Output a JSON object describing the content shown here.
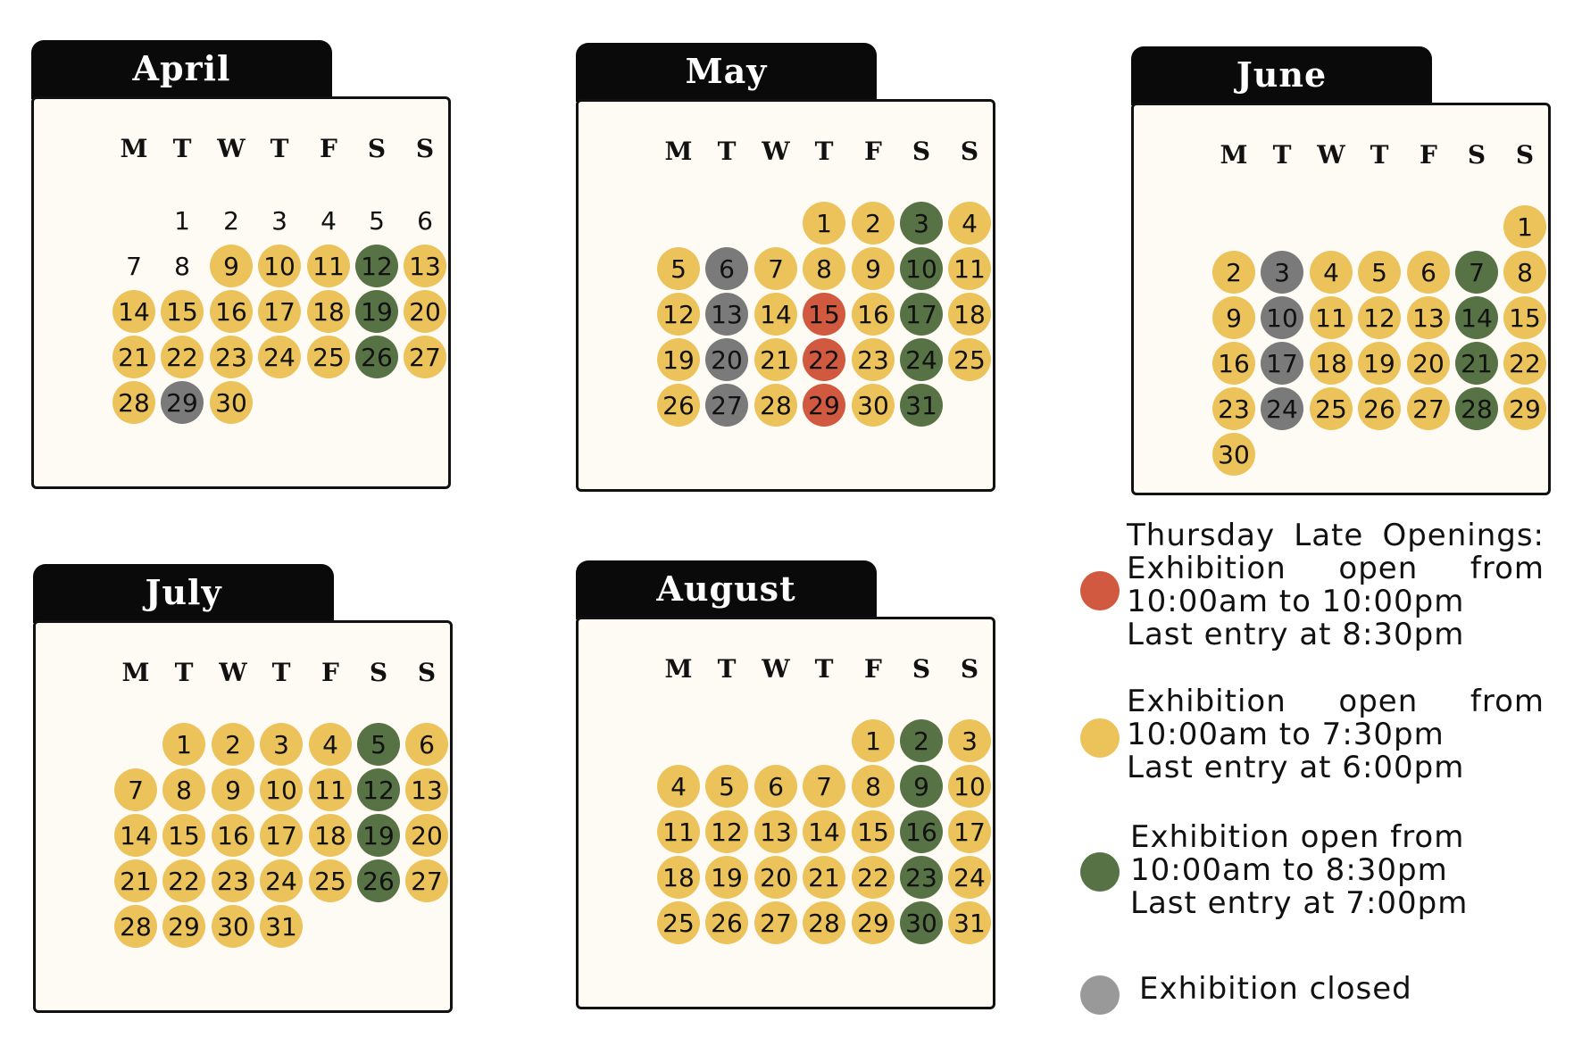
{
  "weekdays": [
    "M",
    "T",
    "W",
    "T",
    "F",
    "S",
    "S"
  ],
  "colors": {
    "open": "#ecc35a",
    "weekend_open": "#577244",
    "late": "#d0593f",
    "closed": "#7a7a7a"
  },
  "months": [
    {
      "name": "April",
      "start_offset": 1,
      "days": [
        [
          "1",
          "none"
        ],
        [
          "2",
          "none"
        ],
        [
          "3",
          "none"
        ],
        [
          "4",
          "none"
        ],
        [
          "5",
          "none"
        ],
        [
          "6",
          "none"
        ],
        [
          "7",
          "none"
        ],
        [
          "8",
          "none"
        ],
        [
          "9",
          "open"
        ],
        [
          "10",
          "open"
        ],
        [
          "11",
          "open"
        ],
        [
          "12",
          "weekend_open"
        ],
        [
          "13",
          "open"
        ],
        [
          "14",
          "open"
        ],
        [
          "15",
          "open"
        ],
        [
          "16",
          "open"
        ],
        [
          "17",
          "open"
        ],
        [
          "18",
          "open"
        ],
        [
          "19",
          "weekend_open"
        ],
        [
          "20",
          "open"
        ],
        [
          "21",
          "open"
        ],
        [
          "22",
          "open"
        ],
        [
          "23",
          "open"
        ],
        [
          "24",
          "open"
        ],
        [
          "25",
          "open"
        ],
        [
          "26",
          "weekend_open"
        ],
        [
          "27",
          "open"
        ],
        [
          "28",
          "open"
        ],
        [
          "29",
          "closed"
        ],
        [
          "30",
          "open"
        ]
      ]
    },
    {
      "name": "May",
      "start_offset": 3,
      "days": [
        [
          "1",
          "open"
        ],
        [
          "2",
          "open"
        ],
        [
          "3",
          "weekend_open"
        ],
        [
          "4",
          "open"
        ],
        [
          "5",
          "open"
        ],
        [
          "6",
          "closed"
        ],
        [
          "7",
          "open"
        ],
        [
          "8",
          "open"
        ],
        [
          "9",
          "open"
        ],
        [
          "10",
          "weekend_open"
        ],
        [
          "11",
          "open"
        ],
        [
          "12",
          "open"
        ],
        [
          "13",
          "closed"
        ],
        [
          "14",
          "open"
        ],
        [
          "15",
          "late"
        ],
        [
          "16",
          "open"
        ],
        [
          "17",
          "weekend_open"
        ],
        [
          "18",
          "open"
        ],
        [
          "19",
          "open"
        ],
        [
          "20",
          "closed"
        ],
        [
          "21",
          "open"
        ],
        [
          "22",
          "late"
        ],
        [
          "23",
          "open"
        ],
        [
          "24",
          "weekend_open"
        ],
        [
          "25",
          "open"
        ],
        [
          "26",
          "open"
        ],
        [
          "27",
          "closed"
        ],
        [
          "28",
          "open"
        ],
        [
          "29",
          "late"
        ],
        [
          "30",
          "open"
        ],
        [
          "31",
          "weekend_open"
        ]
      ]
    },
    {
      "name": "June",
      "start_offset": 6,
      "days": [
        [
          "1",
          "open"
        ],
        [
          "2",
          "open"
        ],
        [
          "3",
          "closed"
        ],
        [
          "4",
          "open"
        ],
        [
          "5",
          "open"
        ],
        [
          "6",
          "open"
        ],
        [
          "7",
          "weekend_open"
        ],
        [
          "8",
          "open"
        ],
        [
          "9",
          "open"
        ],
        [
          "10",
          "closed"
        ],
        [
          "11",
          "open"
        ],
        [
          "12",
          "open"
        ],
        [
          "13",
          "open"
        ],
        [
          "14",
          "weekend_open"
        ],
        [
          "15",
          "open"
        ],
        [
          "16",
          "open"
        ],
        [
          "17",
          "closed"
        ],
        [
          "18",
          "open"
        ],
        [
          "19",
          "open"
        ],
        [
          "20",
          "open"
        ],
        [
          "21",
          "weekend_open"
        ],
        [
          "22",
          "open"
        ],
        [
          "23",
          "open"
        ],
        [
          "24",
          "closed"
        ],
        [
          "25",
          "open"
        ],
        [
          "26",
          "open"
        ],
        [
          "27",
          "open"
        ],
        [
          "28",
          "weekend_open"
        ],
        [
          "29",
          "open"
        ],
        [
          "30",
          "open"
        ]
      ]
    },
    {
      "name": "July",
      "start_offset": 1,
      "days": [
        [
          "1",
          "open"
        ],
        [
          "2",
          "open"
        ],
        [
          "3",
          "open"
        ],
        [
          "4",
          "open"
        ],
        [
          "5",
          "weekend_open"
        ],
        [
          "6",
          "open"
        ],
        [
          "7",
          "open"
        ],
        [
          "8",
          "open"
        ],
        [
          "9",
          "open"
        ],
        [
          "10",
          "open"
        ],
        [
          "11",
          "open"
        ],
        [
          "12",
          "weekend_open"
        ],
        [
          "13",
          "open"
        ],
        [
          "14",
          "open"
        ],
        [
          "15",
          "open"
        ],
        [
          "16",
          "open"
        ],
        [
          "17",
          "open"
        ],
        [
          "18",
          "open"
        ],
        [
          "19",
          "weekend_open"
        ],
        [
          "20",
          "open"
        ],
        [
          "21",
          "open"
        ],
        [
          "22",
          "open"
        ],
        [
          "23",
          "open"
        ],
        [
          "24",
          "open"
        ],
        [
          "25",
          "open"
        ],
        [
          "26",
          "weekend_open"
        ],
        [
          "27",
          "open"
        ],
        [
          "28",
          "open"
        ],
        [
          "29",
          "open"
        ],
        [
          "30",
          "open"
        ],
        [
          "31",
          "open"
        ]
      ]
    },
    {
      "name": "August",
      "start_offset": 4,
      "days": [
        [
          "1",
          "open"
        ],
        [
          "2",
          "weekend_open"
        ],
        [
          "3",
          "open"
        ],
        [
          "4",
          "open"
        ],
        [
          "5",
          "open"
        ],
        [
          "6",
          "open"
        ],
        [
          "7",
          "open"
        ],
        [
          "8",
          "open"
        ],
        [
          "9",
          "weekend_open"
        ],
        [
          "10",
          "open"
        ],
        [
          "11",
          "open"
        ],
        [
          "12",
          "open"
        ],
        [
          "13",
          "open"
        ],
        [
          "14",
          "open"
        ],
        [
          "15",
          "open"
        ],
        [
          "16",
          "weekend_open"
        ],
        [
          "17",
          "open"
        ],
        [
          "18",
          "open"
        ],
        [
          "19",
          "open"
        ],
        [
          "20",
          "open"
        ],
        [
          "21",
          "open"
        ],
        [
          "22",
          "open"
        ],
        [
          "23",
          "weekend_open"
        ],
        [
          "24",
          "open"
        ],
        [
          "25",
          "open"
        ],
        [
          "26",
          "open"
        ],
        [
          "27",
          "open"
        ],
        [
          "28",
          "open"
        ],
        [
          "29",
          "open"
        ],
        [
          "30",
          "weekend_open"
        ],
        [
          "31",
          "open"
        ]
      ]
    }
  ],
  "legend": {
    "late": {
      "line1": "Thursday Late Openings:",
      "line2": "Exhibition open from",
      "line3": "10:00am to 10:00pm",
      "line4": "Last entry at 8:30pm"
    },
    "open": {
      "line1": "Exhibition open from",
      "line2": "10:00am to 7:30pm",
      "line3": "Last entry at 6:00pm"
    },
    "weekend_open": {
      "line1": "Exhibition open from",
      "line2": "10:00am to 8:30pm",
      "line3": "Last entry at 7:00pm"
    },
    "closed": {
      "line1": "Exhibition closed"
    }
  }
}
